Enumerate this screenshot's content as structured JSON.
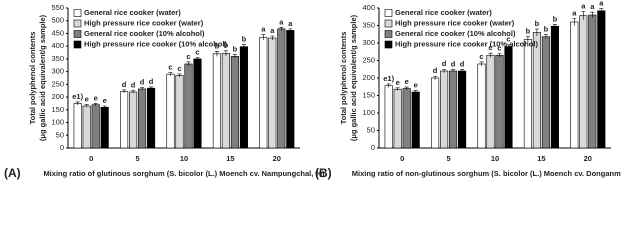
{
  "chart_data": [
    {
      "type": "bar",
      "panel_label": "(A)",
      "y_label": [
        "Total polyphenol contents",
        "(μg gallic acid equivalent/g sample)"
      ],
      "x_label": "Mixing ratio of glutinous sorghum (S. bicolor (L.) Moench cv. Nampungchal, %)",
      "categories": [
        "0",
        "5",
        "10",
        "15",
        "20"
      ],
      "ylim": [
        0,
        550
      ],
      "yticks": [
        0,
        50,
        100,
        150,
        200,
        250,
        300,
        350,
        400,
        450,
        500,
        550
      ],
      "legend": "upper left",
      "series": [
        {
          "name": "General rice cooker (water)",
          "color": "#ffffff",
          "values": [
            175,
            222,
            290,
            370,
            435
          ],
          "errors": [
            6,
            6,
            6,
            10,
            10
          ],
          "letters": [
            "e1)",
            "d",
            "c",
            "b",
            "a"
          ]
        },
        {
          "name": "High pressure rice cooker (water)",
          "color": "#d9d9d9",
          "values": [
            165,
            220,
            285,
            372,
            432
          ],
          "errors": [
            5,
            5,
            6,
            10,
            8
          ],
          "letters": [
            "e",
            "d",
            "c",
            "b",
            "a"
          ]
        },
        {
          "name": "General rice cooker (10% alcohol)",
          "color": "#808080",
          "values": [
            170,
            232,
            330,
            360,
            468
          ],
          "errors": [
            5,
            5,
            8,
            8,
            6
          ],
          "letters": [
            "e",
            "d",
            "c",
            "b",
            "a"
          ]
        },
        {
          "name": "High pressure rice cooker (10% alcohol)",
          "color": "#000000",
          "values": [
            160,
            235,
            350,
            398,
            462
          ],
          "errors": [
            5,
            5,
            6,
            8,
            6
          ],
          "letters": [
            "e",
            "d",
            "c",
            "b",
            "a"
          ]
        }
      ]
    },
    {
      "type": "bar",
      "panel_label": "(B)",
      "y_label": [
        "Total polyphenol contents",
        "(μg gallic acid equivalent/g sample)"
      ],
      "x_label": "Mixing ratio of non-glutinous sorghum (S. bicolor (L.) Moench cv. Donganme, %)",
      "categories": [
        "0",
        "5",
        "10",
        "15",
        "20"
      ],
      "ylim": [
        0,
        400
      ],
      "yticks": [
        0,
        50,
        100,
        150,
        200,
        250,
        300,
        350,
        400
      ],
      "legend": "upper left",
      "series": [
        {
          "name": "General rice cooker (water)",
          "color": "#ffffff",
          "values": [
            178,
            200,
            240,
            310,
            360
          ],
          "errors": [
            5,
            5,
            6,
            8,
            10
          ],
          "letters": [
            "e1)",
            "d",
            "c",
            "b",
            "a"
          ]
        },
        {
          "name": "High pressure rice cooker (water)",
          "color": "#d9d9d9",
          "values": [
            168,
            220,
            265,
            330,
            378
          ],
          "errors": [
            4,
            5,
            6,
            10,
            12
          ],
          "letters": [
            "e",
            "d",
            "c",
            "b",
            "a"
          ]
        },
        {
          "name": "General rice cooker (10% alcohol)",
          "color": "#808080",
          "values": [
            170,
            220,
            265,
            318,
            380
          ],
          "errors": [
            4,
            4,
            5,
            6,
            8
          ],
          "letters": [
            "e",
            "d",
            "c",
            "b",
            "a"
          ]
        },
        {
          "name": "High pressure rice cooker (10% alcohol)",
          "color": "#000000",
          "values": [
            160,
            220,
            290,
            348,
            392
          ],
          "errors": [
            4,
            4,
            5,
            5,
            6
          ],
          "letters": [
            "e",
            "d",
            "c",
            "b",
            "a"
          ]
        }
      ]
    }
  ]
}
